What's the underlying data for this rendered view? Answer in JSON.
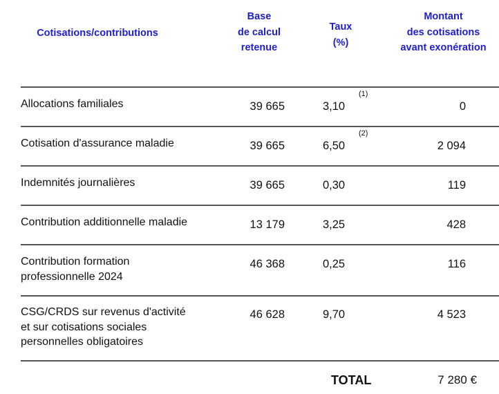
{
  "header": {
    "col_label": "Cotisations/contributions",
    "col_base": [
      "Base",
      "de calcul",
      "retenue"
    ],
    "col_taux": [
      "Taux",
      "(%)"
    ],
    "col_montant": [
      "Montant",
      "des cotisations",
      "avant exonération"
    ]
  },
  "rows": [
    {
      "label": "Allocations familiales",
      "base": "39 665",
      "taux": "3,10",
      "note": "(1)",
      "montant": "0"
    },
    {
      "label": "Cotisation d'assurance maladie",
      "base": "39 665",
      "taux": "6,50",
      "note": "(2)",
      "montant": "2 094"
    },
    {
      "label": "Indemnités journalières",
      "base": "39 665",
      "taux": "0,30",
      "montant": "119"
    },
    {
      "label": "Contribution additionnelle maladie",
      "base": "13 179",
      "taux": "3,25",
      "montant": "428"
    },
    {
      "label": "Contribution formation\nprofessionnelle 2024",
      "base": "46 368",
      "taux": "0,25",
      "montant": "116"
    },
    {
      "label": "CSG/CRDS sur revenus d'activité\net sur cotisations sociales\npersonnelles obligatoires",
      "base": "46 628",
      "taux": "9,70",
      "montant": "4 523"
    }
  ],
  "total": {
    "label": "TOTAL",
    "value": "7 280 €"
  },
  "colors": {
    "header": "#1f1fc8",
    "rule": "#555555"
  }
}
